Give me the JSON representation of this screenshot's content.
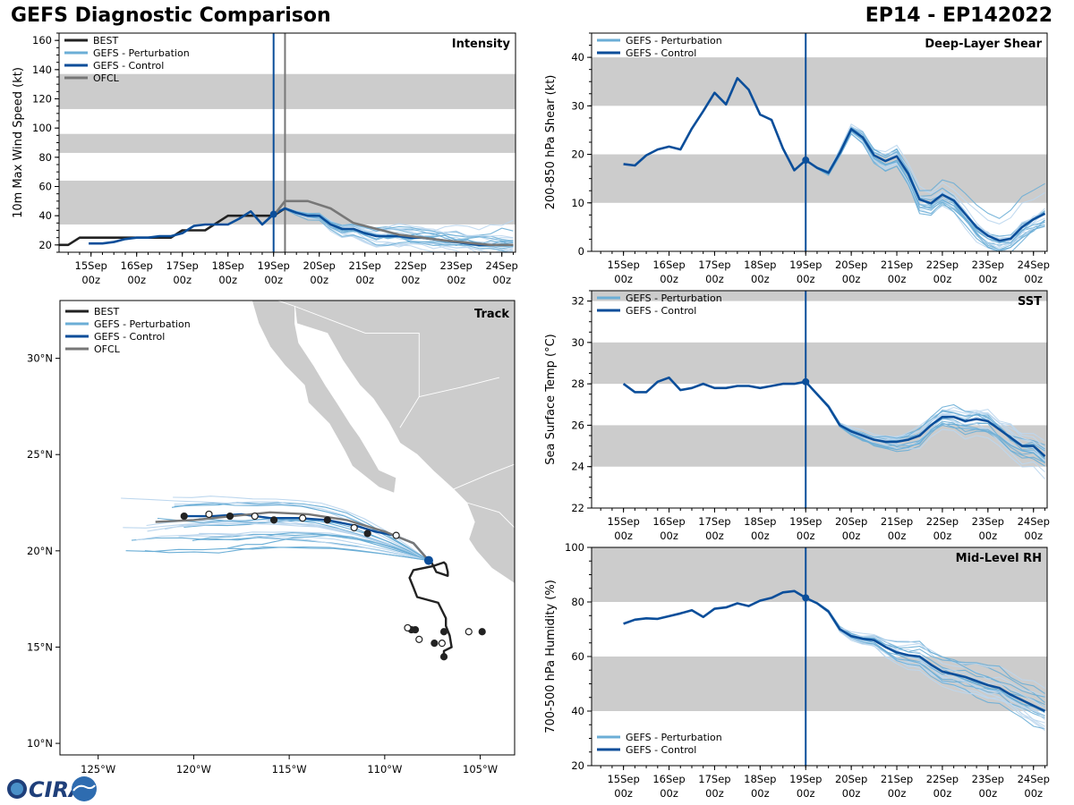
{
  "header": {
    "title": "GEFS Diagnostic Comparison",
    "storm_id": "EP14 - EP142022"
  },
  "logo": {
    "text": "CIRA"
  },
  "colors": {
    "best": "#222222",
    "perturbation": "#6BAED6",
    "perturbation_light": "#BDD7EE",
    "control": "#0B4E9A",
    "ofcl": "#777777",
    "band": "#CCCCCC",
    "land": "#CCCCCC"
  },
  "chart_data": [
    {
      "id": "intensity",
      "type": "line",
      "title": "Intensity",
      "ylabel": "10m Max Wind Speed (kt)",
      "xlim": [
        -0.7,
        9.3
      ],
      "ylim": [
        15,
        165
      ],
      "yticks": [
        20,
        40,
        60,
        80,
        100,
        120,
        140,
        160
      ],
      "x_ticks": [
        0,
        1,
        2,
        3,
        4,
        5,
        6,
        7,
        8,
        9
      ],
      "x_tick_labels": [
        [
          "15Sep",
          "00z"
        ],
        [
          "16Sep",
          "00z"
        ],
        [
          "17Sep",
          "00z"
        ],
        [
          "18Sep",
          "00z"
        ],
        [
          "19Sep",
          "00z"
        ],
        [
          "20Sep",
          "00z"
        ],
        [
          "21Sep",
          "00z"
        ],
        [
          "22Sep",
          "00z"
        ],
        [
          "23Sep",
          "00z"
        ],
        [
          "24Sep",
          "00z"
        ]
      ],
      "bands": [
        [
          34,
          64
        ],
        [
          83,
          96
        ],
        [
          113,
          137
        ]
      ],
      "init_line": 4.0,
      "ofcl_line": 4.25,
      "legend": [
        "BEST",
        "GEFS - Perturbation",
        "GEFS - Control",
        "OFCL"
      ],
      "series": [
        {
          "name": "BEST",
          "x": [
            -0.75,
            -0.5,
            -0.25,
            0,
            0.25,
            0.5,
            0.75,
            1,
            1.25,
            1.5,
            1.75,
            2,
            2.25,
            2.5,
            2.75,
            3,
            3.25,
            3.5,
            3.75,
            4,
            4.25
          ],
          "y": [
            20,
            20,
            25,
            25,
            25,
            25,
            25,
            25,
            25,
            25,
            25,
            30,
            30,
            30,
            35,
            40,
            40,
            40,
            40,
            40,
            45
          ]
        },
        {
          "name": "GEFS - Control",
          "x": [
            -0.05,
            0.25,
            0.5,
            0.75,
            1,
            1.25,
            1.5,
            1.75,
            2,
            2.25,
            2.5,
            2.75,
            3,
            3.25,
            3.5,
            3.75,
            4,
            4.25,
            4.5,
            4.75,
            5,
            5.25,
            5.5,
            5.75,
            6,
            6.25,
            6.5,
            6.75,
            7,
            7.25,
            7.5,
            7.75,
            8,
            8.25,
            8.5,
            8.75,
            9,
            9.25
          ],
          "y": [
            21,
            21,
            22,
            24,
            25,
            25,
            26,
            26,
            28,
            33,
            34,
            34,
            34,
            38,
            43,
            34,
            41,
            45,
            42,
            40,
            40,
            34,
            31,
            31,
            28,
            26,
            26,
            26,
            25,
            25,
            24,
            23,
            22,
            21,
            20,
            20,
            20,
            20
          ]
        },
        {
          "name": "OFCL",
          "x": [
            4.0,
            4.25,
            4.75,
            5.25,
            5.75,
            6.75,
            7.75,
            8.75,
            9.25
          ],
          "y": [
            40,
            50,
            50,
            45,
            35,
            27,
            23,
            20,
            20
          ]
        }
      ]
    },
    {
      "id": "shear",
      "type": "line",
      "title": "Deep-Layer Shear",
      "ylabel": "200-850 hPa Shear (kt)",
      "xlim": [
        -0.7,
        9.3
      ],
      "ylim": [
        0,
        45
      ],
      "yticks": [
        0,
        10,
        20,
        30,
        40
      ],
      "x_ticks": [
        0,
        1,
        2,
        3,
        4,
        5,
        6,
        7,
        8,
        9
      ],
      "x_tick_labels": [
        [
          "15Sep",
          "00z"
        ],
        [
          "16Sep",
          "00z"
        ],
        [
          "17Sep",
          "00z"
        ],
        [
          "18Sep",
          "00z"
        ],
        [
          "19Sep",
          "00z"
        ],
        [
          "20Sep",
          "00z"
        ],
        [
          "21Sep",
          "00z"
        ],
        [
          "22Sep",
          "00z"
        ],
        [
          "23Sep",
          "00z"
        ],
        [
          "24Sep",
          "00z"
        ]
      ],
      "bands": [
        [
          10,
          20
        ],
        [
          30,
          40
        ]
      ],
      "init_line": 4.0,
      "legend": [
        "GEFS - Perturbation",
        "GEFS - Control"
      ],
      "series": [
        {
          "name": "GEFS - Control",
          "x": [
            0,
            0.25,
            0.5,
            0.75,
            1,
            1.25,
            1.5,
            1.75,
            2,
            2.25,
            2.5,
            2.75,
            3,
            3.25,
            3.5,
            3.75,
            4,
            4.25,
            4.5,
            4.75,
            5,
            5.25,
            5.5,
            5.75,
            6,
            6.25,
            6.5,
            6.75,
            7,
            7.25,
            7.5,
            7.75,
            8,
            8.25,
            8.5,
            8.75,
            9,
            9.25
          ],
          "y": [
            18,
            17.7,
            19.8,
            21,
            21.6,
            21,
            25.3,
            28.9,
            32.7,
            30.3,
            35.7,
            33.3,
            28.2,
            27.1,
            21.2,
            16.7,
            18.8,
            17.2,
            16.2,
            20.3,
            25.2,
            23.5,
            19.8,
            18.6,
            19.6,
            16,
            10.7,
            9.9,
            11.7,
            10.5,
            7.7,
            5,
            3.2,
            2.2,
            2.6,
            5,
            6.6,
            7.8
          ]
        }
      ]
    },
    {
      "id": "sst",
      "type": "line",
      "title": "SST",
      "ylabel": "Sea Surface Temp (°C)",
      "xlim": [
        -0.7,
        9.3
      ],
      "ylim": [
        22,
        32.5
      ],
      "yticks": [
        22,
        24,
        26,
        28,
        30,
        32
      ],
      "x_ticks": [
        0,
        1,
        2,
        3,
        4,
        5,
        6,
        7,
        8,
        9
      ],
      "x_tick_labels": [
        [
          "15Sep",
          "00z"
        ],
        [
          "16Sep",
          "00z"
        ],
        [
          "17Sep",
          "00z"
        ],
        [
          "18Sep",
          "00z"
        ],
        [
          "19Sep",
          "00z"
        ],
        [
          "20Sep",
          "00z"
        ],
        [
          "21Sep",
          "00z"
        ],
        [
          "22Sep",
          "00z"
        ],
        [
          "23Sep",
          "00z"
        ],
        [
          "24Sep",
          "00z"
        ]
      ],
      "bands": [
        [
          24,
          26
        ],
        [
          28,
          30
        ],
        [
          32,
          34
        ]
      ],
      "init_line": 4.0,
      "legend": [
        "GEFS - Perturbation",
        "GEFS - Control"
      ],
      "series": [
        {
          "name": "GEFS - Control",
          "x": [
            0,
            0.25,
            0.5,
            0.75,
            1,
            1.25,
            1.5,
            1.75,
            2,
            2.25,
            2.5,
            2.75,
            3,
            3.25,
            3.5,
            3.75,
            4,
            4.25,
            4.5,
            4.75,
            5,
            5.25,
            5.5,
            5.75,
            6,
            6.25,
            6.5,
            6.75,
            7,
            7.25,
            7.5,
            7.75,
            8,
            8.25,
            8.5,
            8.75,
            9,
            9.25
          ],
          "y": [
            28,
            27.6,
            27.6,
            28.1,
            28.3,
            27.7,
            27.8,
            28,
            27.8,
            27.8,
            27.9,
            27.9,
            27.8,
            27.9,
            28,
            28,
            28.1,
            27.5,
            26.9,
            26,
            25.7,
            25.5,
            25.3,
            25.2,
            25.2,
            25.3,
            25.5,
            26,
            26.4,
            26.4,
            26.2,
            26.3,
            26.2,
            25.8,
            25.4,
            25,
            25,
            24.5
          ]
        }
      ]
    },
    {
      "id": "rh",
      "type": "line",
      "title": "Mid-Level RH",
      "ylabel": "700-500 hPa Humidity (%)",
      "xlim": [
        -0.7,
        9.3
      ],
      "ylim": [
        20,
        100
      ],
      "yticks": [
        20,
        40,
        60,
        80,
        100
      ],
      "x_ticks": [
        0,
        1,
        2,
        3,
        4,
        5,
        6,
        7,
        8,
        9
      ],
      "x_tick_labels": [
        [
          "15Sep",
          "00z"
        ],
        [
          "16Sep",
          "00z"
        ],
        [
          "17Sep",
          "00z"
        ],
        [
          "18Sep",
          "00z"
        ],
        [
          "19Sep",
          "00z"
        ],
        [
          "20Sep",
          "00z"
        ],
        [
          "21Sep",
          "00z"
        ],
        [
          "22Sep",
          "00z"
        ],
        [
          "23Sep",
          "00z"
        ],
        [
          "24Sep",
          "00z"
        ]
      ],
      "bands": [
        [
          40,
          60
        ],
        [
          80,
          100
        ]
      ],
      "init_line": 4.0,
      "legend": [
        "GEFS - Perturbation",
        "GEFS - Control"
      ],
      "series": [
        {
          "name": "GEFS - Control",
          "x": [
            0,
            0.25,
            0.5,
            0.75,
            1,
            1.25,
            1.5,
            1.75,
            2,
            2.25,
            2.5,
            2.75,
            3,
            3.25,
            3.5,
            3.75,
            4,
            4.25,
            4.5,
            4.75,
            5,
            5.25,
            5.5,
            5.75,
            6,
            6.25,
            6.5,
            6.75,
            7,
            7.25,
            7.5,
            7.75,
            8,
            8.25,
            8.5,
            8.75,
            9,
            9.25
          ],
          "y": [
            72,
            73.5,
            74,
            73.8,
            74.8,
            75.8,
            77,
            74.5,
            77.5,
            78,
            79.5,
            78.5,
            80.5,
            81.5,
            83.5,
            84,
            81.5,
            79.5,
            76.5,
            70,
            67.5,
            66.5,
            66,
            63.5,
            61.5,
            60.5,
            60,
            57,
            54.5,
            53.5,
            52.5,
            51,
            49.5,
            48.5,
            46,
            44,
            42,
            40
          ]
        }
      ]
    },
    {
      "id": "track",
      "type": "scatter",
      "title": "Track",
      "xlim": [
        -127,
        -103.2
      ],
      "ylim": [
        9.4,
        33
      ],
      "x_ticks": [
        -125,
        -120,
        -115,
        -110,
        -105
      ],
      "x_tick_labels": [
        "125°W",
        "120°W",
        "115°W",
        "110°W",
        "105°W"
      ],
      "y_ticks": [
        10,
        15,
        20,
        25,
        30
      ],
      "y_tick_labels": [
        "10°N",
        "15°N",
        "20°N",
        "25°N",
        "30°N"
      ],
      "legend": [
        "BEST",
        "GEFS - Perturbation",
        "GEFS - Control",
        "OFCL"
      ],
      "series": [
        {
          "name": "BEST",
          "lon": [
            -106.9,
            -106.9,
            -106.5,
            -106.6,
            -106.8,
            -106.8,
            -107.2,
            -108.3,
            -108.5,
            -108.7,
            -108.5,
            -107.5,
            -106.9,
            -106.8,
            -106.7,
            -106.7,
            -107.3,
            -107.6
          ],
          "lat": [
            14.5,
            14.8,
            15.0,
            15.6,
            16.1,
            16.5,
            17.3,
            17.6,
            18.1,
            18.6,
            19.0,
            19.2,
            19.4,
            19.3,
            18.9,
            18.7,
            18.9,
            19.5
          ]
        },
        {
          "name": "GEFS - Control",
          "lon": [
            -120.5,
            -119.0,
            -117.5,
            -116.0,
            -114.5,
            -113.0,
            -111.5,
            -110.5,
            -109.5,
            -108.5,
            -107.7
          ],
          "lat": [
            21.8,
            21.8,
            21.9,
            21.7,
            21.7,
            21.6,
            21.3,
            21.0,
            20.8,
            20.4,
            19.5
          ]
        },
        {
          "name": "OFCL",
          "lon": [
            -122.0,
            -120.0,
            -118.0,
            -116.0,
            -114.0,
            -112.0,
            -110.0,
            -108.5,
            -107.7
          ],
          "lat": [
            21.5,
            21.6,
            21.8,
            22.0,
            21.9,
            21.6,
            21.0,
            20.4,
            19.5
          ]
        }
      ]
    }
  ]
}
